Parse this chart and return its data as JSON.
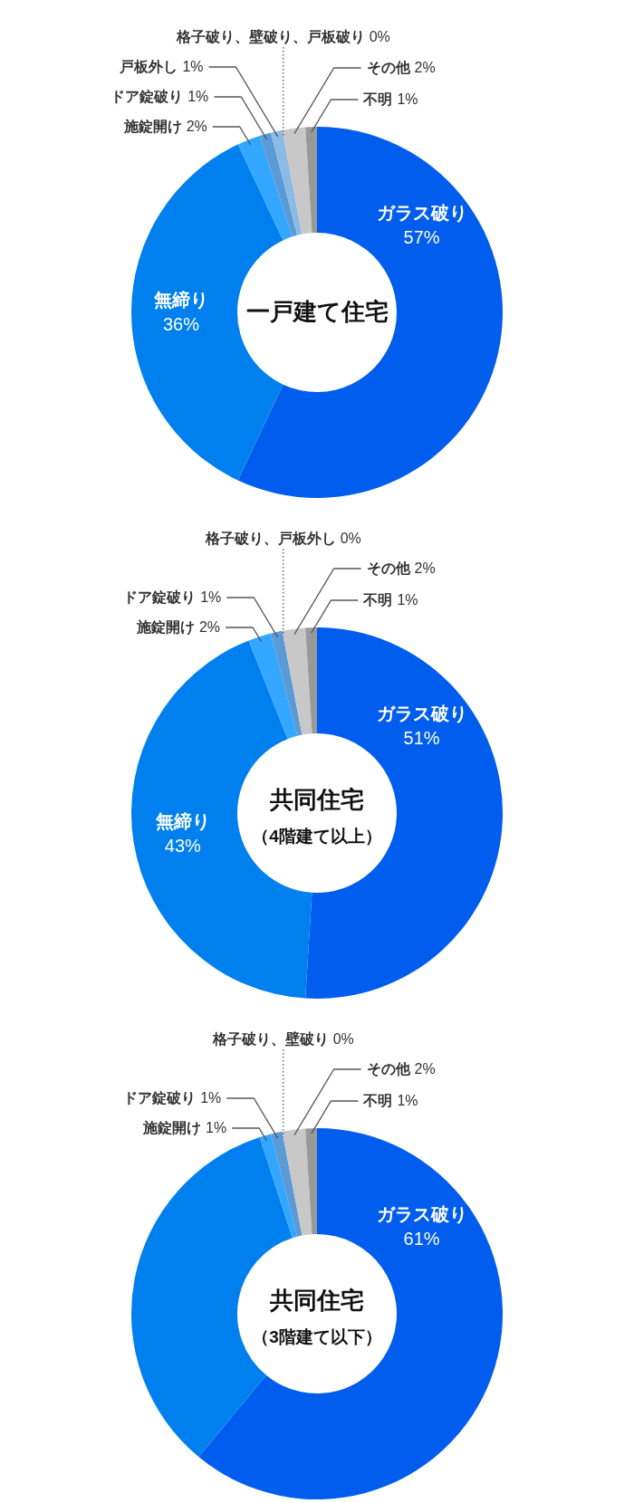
{
  "chart_data": [
    {
      "type": "donut",
      "title": "一戸建て住宅",
      "categories": [
        "ガラス破り",
        "無締り",
        "施錠開け",
        "ドア錠破り",
        "戸板外し",
        "格子破り、壁破り、戸板破り",
        "その他",
        "不明"
      ],
      "values": [
        57,
        36,
        2,
        1,
        1,
        0,
        2,
        1
      ],
      "value_labels": [
        "57%",
        "36%",
        "2%",
        "1%",
        "1%",
        "0%",
        "2%",
        "1%"
      ],
      "colors": [
        "#005ded",
        "#0080ee",
        "#33a6ff",
        "#5a9ad6",
        "#8bbbe3",
        null,
        "#c8c8c8",
        "#999999"
      ]
    },
    {
      "type": "donut",
      "title": "共同住宅",
      "subtitle": "（4階建て以上）",
      "categories": [
        "ガラス破り",
        "無締り",
        "施錠開け",
        "ドア錠破り",
        "格子破り、戸板外し",
        "その他",
        "不明"
      ],
      "values": [
        51,
        43,
        2,
        1,
        0,
        2,
        1
      ],
      "value_labels": [
        "51%",
        "43%",
        "2%",
        "1%",
        "0%",
        "2%",
        "1%"
      ],
      "colors": [
        "#005ded",
        "#0080ee",
        "#33a6ff",
        "#5a9ad6",
        null,
        "#c8c8c8",
        "#999999"
      ]
    },
    {
      "type": "donut",
      "title": "共同住宅",
      "subtitle": "（3階建て以下）",
      "categories": [
        "ガラス破り",
        null,
        "施錠開け",
        "ドア錠破り",
        "格子破り、壁破り",
        "その他",
        "不明"
      ],
      "values": [
        61,
        34,
        1,
        1,
        0,
        2,
        1
      ],
      "value_labels": [
        "61%",
        null,
        "1%",
        "1%",
        "0%",
        "2%",
        "1%"
      ],
      "colors": [
        "#005ded",
        "#0080ee",
        "#33a6ff",
        "#5a9ad6",
        null,
        "#c8c8c8",
        "#999999"
      ]
    }
  ]
}
